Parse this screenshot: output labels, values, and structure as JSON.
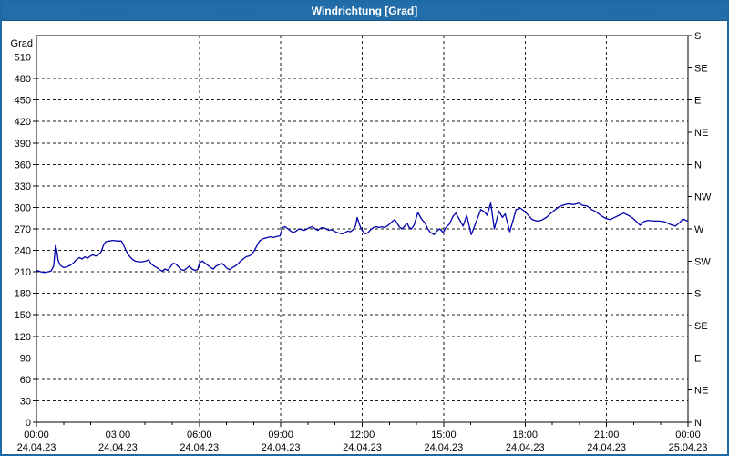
{
  "window": {
    "title": "Windrichtung [Grad]"
  },
  "colors": {
    "titlebar_bg": "#1e6ba8",
    "window_border": "#1d6ba6",
    "line": "#0000aa",
    "grid": "#1a1a1a",
    "axis": "#000000",
    "plot_bg": "#ffffff",
    "text": "#000000",
    "title_text": "#ffffff"
  },
  "chart_data": {
    "type": "line",
    "title": "Windrichtung [Grad]",
    "legend": "none",
    "grid": {
      "style": "dashed",
      "h_step_deg": 30,
      "v_step_hours": 3
    },
    "y_axis": {
      "label": "Grad",
      "min": 0,
      "max": 540,
      "tick_step": 30,
      "tick_labels": [
        "0",
        "30",
        "60",
        "90",
        "120",
        "150",
        "180",
        "210",
        "240",
        "270",
        "300",
        "330",
        "360",
        "390",
        "420",
        "450",
        "480",
        "510"
      ]
    },
    "y_right_axis": {
      "tick_step_deg": 45,
      "labels_bottom_to_top": [
        "N",
        "NE",
        "E",
        "SE",
        "S",
        "SW",
        "W",
        "NW",
        "N",
        "NE",
        "E",
        "SE",
        "S"
      ]
    },
    "x_axis": {
      "min": 0,
      "max": 1440,
      "unit": "minutes",
      "major_tick_hours": 3,
      "minor_tick_hours": 1,
      "tick_labels": [
        {
          "time": "00:00",
          "date": "24.04.23"
        },
        {
          "time": "03:00",
          "date": "24.04.23"
        },
        {
          "time": "06:00",
          "date": "24.04.23"
        },
        {
          "time": "09:00",
          "date": "24.04.23"
        },
        {
          "time": "12:00",
          "date": "24.04.23"
        },
        {
          "time": "15:00",
          "date": "24.04.23"
        },
        {
          "time": "18:00",
          "date": "24.04.23"
        },
        {
          "time": "21:00",
          "date": "24.04.23"
        },
        {
          "time": "00:00",
          "date": "25.04.23"
        }
      ]
    },
    "series": [
      {
        "name": "Windrichtung",
        "color": "#0000aa",
        "points": [
          [
            0,
            212
          ],
          [
            10,
            210
          ],
          [
            18,
            209
          ],
          [
            25,
            210
          ],
          [
            32,
            211
          ],
          [
            38,
            218
          ],
          [
            42,
            247
          ],
          [
            45,
            240
          ],
          [
            48,
            226
          ],
          [
            53,
            219
          ],
          [
            60,
            216
          ],
          [
            67,
            217
          ],
          [
            74,
            219
          ],
          [
            81,
            222
          ],
          [
            88,
            227
          ],
          [
            95,
            230
          ],
          [
            101,
            228
          ],
          [
            107,
            231
          ],
          [
            113,
            229
          ],
          [
            119,
            232
          ],
          [
            125,
            234
          ],
          [
            131,
            232
          ],
          [
            137,
            234
          ],
          [
            143,
            238
          ],
          [
            148,
            247
          ],
          [
            153,
            252
          ],
          [
            160,
            253
          ],
          [
            170,
            254
          ],
          [
            180,
            253
          ],
          [
            188,
            253
          ],
          [
            193,
            247
          ],
          [
            198,
            240
          ],
          [
            203,
            234
          ],
          [
            208,
            230
          ],
          [
            213,
            227
          ],
          [
            218,
            225
          ],
          [
            226,
            224
          ],
          [
            234,
            224
          ],
          [
            242,
            225
          ],
          [
            248,
            227
          ],
          [
            254,
            221
          ],
          [
            260,
            218
          ],
          [
            266,
            216
          ],
          [
            272,
            213
          ],
          [
            278,
            211
          ],
          [
            284,
            214
          ],
          [
            290,
            212
          ],
          [
            296,
            217
          ],
          [
            302,
            222
          ],
          [
            308,
            221
          ],
          [
            314,
            217
          ],
          [
            320,
            213
          ],
          [
            326,
            212
          ],
          [
            332,
            215
          ],
          [
            338,
            218
          ],
          [
            344,
            214
          ],
          [
            350,
            212
          ],
          [
            356,
            213
          ],
          [
            361,
            223
          ],
          [
            367,
            225
          ],
          [
            373,
            222
          ],
          [
            379,
            219
          ],
          [
            385,
            216
          ],
          [
            391,
            214
          ],
          [
            397,
            218
          ],
          [
            403,
            220
          ],
          [
            409,
            222
          ],
          [
            415,
            219
          ],
          [
            421,
            215
          ],
          [
            427,
            213
          ],
          [
            433,
            216
          ],
          [
            439,
            218
          ],
          [
            445,
            221
          ],
          [
            451,
            225
          ],
          [
            457,
            228
          ],
          [
            463,
            231
          ],
          [
            469,
            232
          ],
          [
            475,
            234
          ],
          [
            481,
            239
          ],
          [
            487,
            246
          ],
          [
            493,
            253
          ],
          [
            499,
            256
          ],
          [
            505,
            257
          ],
          [
            511,
            258
          ],
          [
            517,
            259
          ],
          [
            523,
            258
          ],
          [
            529,
            259
          ],
          [
            535,
            260
          ],
          [
            538,
            260
          ],
          [
            541,
            266
          ],
          [
            544,
            272
          ],
          [
            550,
            273
          ],
          [
            556,
            270
          ],
          [
            562,
            267
          ],
          [
            568,
            265
          ],
          [
            574,
            267
          ],
          [
            580,
            270
          ],
          [
            586,
            269
          ],
          [
            592,
            268
          ],
          [
            598,
            270
          ],
          [
            604,
            272
          ],
          [
            610,
            273
          ],
          [
            616,
            270
          ],
          [
            622,
            268
          ],
          [
            628,
            271
          ],
          [
            634,
            272
          ],
          [
            640,
            270
          ],
          [
            646,
            268
          ],
          [
            652,
            269
          ],
          [
            658,
            267
          ],
          [
            664,
            265
          ],
          [
            670,
            264
          ],
          [
            676,
            263
          ],
          [
            682,
            265
          ],
          [
            688,
            267
          ],
          [
            694,
            266
          ],
          [
            700,
            269
          ],
          [
            705,
            274
          ],
          [
            709,
            286
          ],
          [
            713,
            278
          ],
          [
            717,
            271
          ],
          [
            721,
            267
          ],
          [
            727,
            263
          ],
          [
            733,
            265
          ],
          [
            739,
            269
          ],
          [
            745,
            272
          ],
          [
            751,
            273
          ],
          [
            757,
            272
          ],
          [
            763,
            273
          ],
          [
            769,
            272
          ],
          [
            775,
            274
          ],
          [
            781,
            277
          ],
          [
            787,
            281
          ],
          [
            792,
            283
          ],
          [
            797,
            278
          ],
          [
            802,
            273
          ],
          [
            808,
            270
          ],
          [
            814,
            274
          ],
          [
            819,
            278
          ],
          [
            824,
            272
          ],
          [
            829,
            270
          ],
          [
            835,
            276
          ],
          [
            843,
            293
          ],
          [
            851,
            284
          ],
          [
            859,
            278
          ],
          [
            865,
            270
          ],
          [
            871,
            265
          ],
          [
            879,
            262
          ],
          [
            885,
            267
          ],
          [
            891,
            270
          ],
          [
            899,
            265
          ],
          [
            905,
            272
          ],
          [
            913,
            277
          ],
          [
            921,
            288
          ],
          [
            927,
            292
          ],
          [
            935,
            283
          ],
          [
            943,
            274
          ],
          [
            951,
            289
          ],
          [
            961,
            262
          ],
          [
            972,
            280
          ],
          [
            982,
            297
          ],
          [
            990,
            294
          ],
          [
            996,
            289
          ],
          [
            1004,
            306
          ],
          [
            1012,
            270
          ],
          [
            1022,
            295
          ],
          [
            1030,
            286
          ],
          [
            1036,
            291
          ],
          [
            1046,
            266
          ],
          [
            1054,
            283
          ],
          [
            1060,
            297
          ],
          [
            1070,
            299
          ],
          [
            1080,
            294
          ],
          [
            1090,
            287
          ],
          [
            1096,
            283
          ],
          [
            1106,
            281
          ],
          [
            1116,
            282
          ],
          [
            1127,
            286
          ],
          [
            1137,
            292
          ],
          [
            1147,
            297
          ],
          [
            1155,
            301
          ],
          [
            1163,
            303
          ],
          [
            1175,
            305
          ],
          [
            1187,
            304
          ],
          [
            1199,
            306
          ],
          [
            1207,
            303
          ],
          [
            1217,
            302
          ],
          [
            1227,
            297
          ],
          [
            1237,
            294
          ],
          [
            1247,
            289
          ],
          [
            1257,
            285
          ],
          [
            1268,
            283
          ],
          [
            1284,
            288
          ],
          [
            1298,
            292
          ],
          [
            1308,
            289
          ],
          [
            1318,
            285
          ],
          [
            1328,
            279
          ],
          [
            1334,
            275
          ],
          [
            1342,
            280
          ],
          [
            1352,
            282
          ],
          [
            1364,
            281
          ],
          [
            1376,
            281
          ],
          [
            1388,
            280
          ],
          [
            1402,
            276
          ],
          [
            1412,
            274
          ],
          [
            1422,
            279
          ],
          [
            1429,
            284
          ],
          [
            1435,
            282
          ],
          [
            1440,
            281
          ]
        ]
      }
    ]
  }
}
